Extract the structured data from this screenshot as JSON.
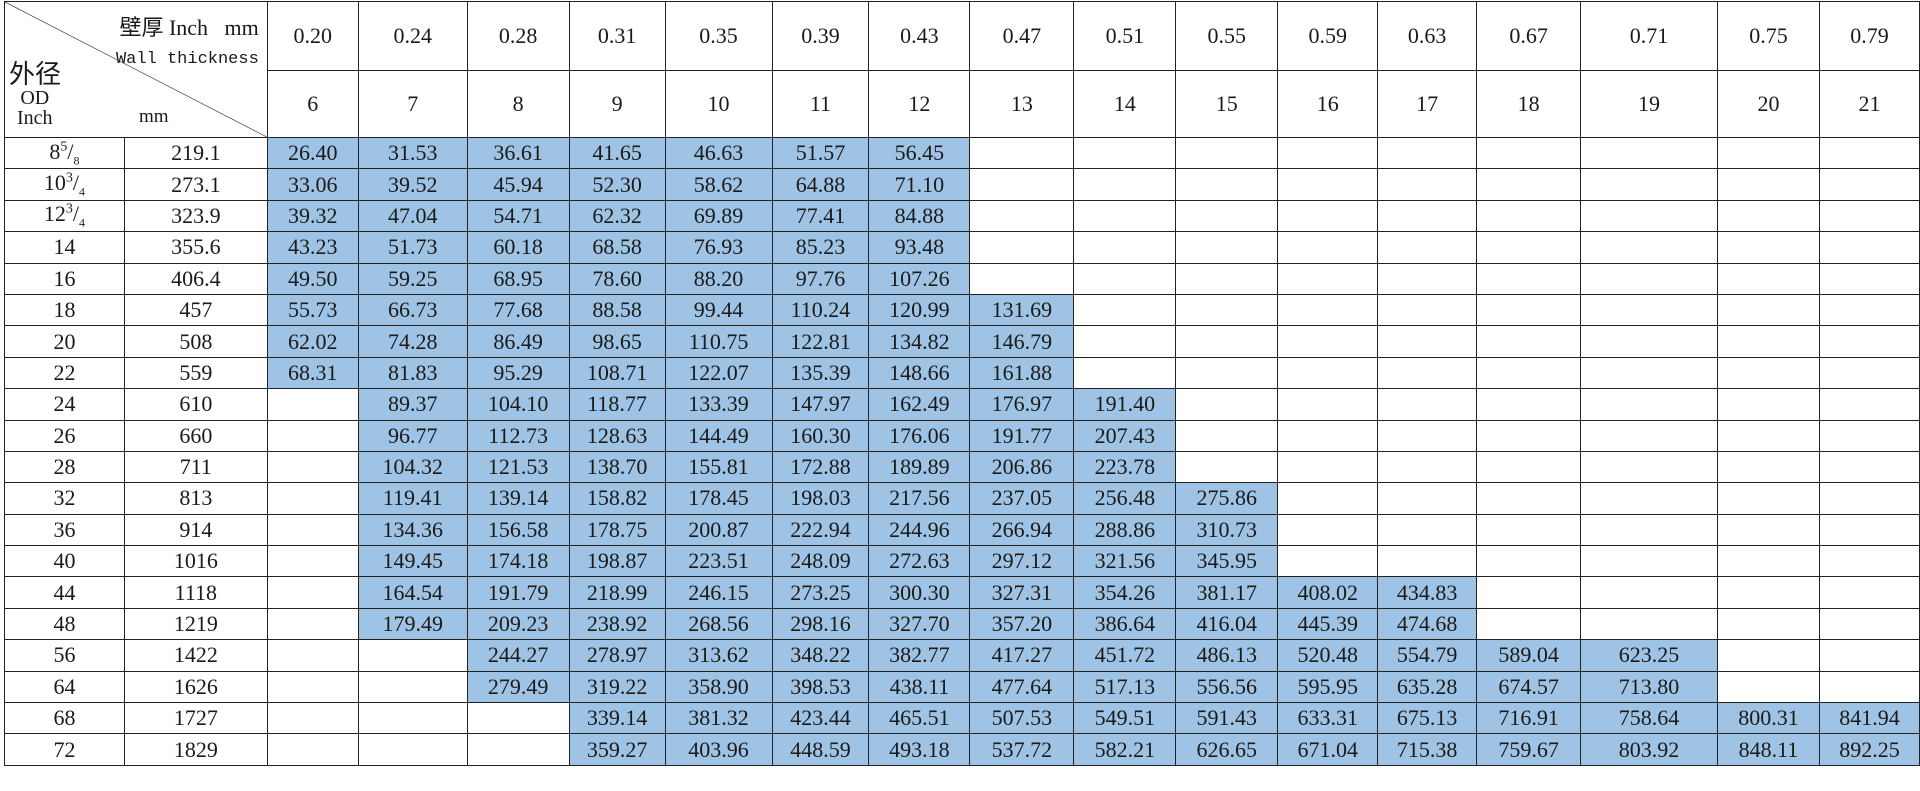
{
  "corner": {
    "wall_label": "壁厚 Inch   mm",
    "wall_label_en": "Wall thickness",
    "od_label": "外径",
    "od_label_en": "OD",
    "od_inch": "Inch",
    "od_mm": "mm"
  },
  "wall_inch": [
    "0.20",
    "0.24",
    "0.28",
    "0.31",
    "0.35",
    "0.39",
    "0.43",
    "0.47",
    "0.51",
    "0.55",
    "0.59",
    "0.63",
    "0.67",
    "0.71",
    "0.75",
    "0.79"
  ],
  "wall_mm": [
    "6",
    "7",
    "8",
    "9",
    "10",
    "11",
    "12",
    "13",
    "14",
    "15",
    "16",
    "17",
    "18",
    "19",
    "20",
    "21"
  ],
  "fill_color": "#9fc3e4",
  "rows": [
    {
      "od_inch": {
        "whole": "8",
        "num": "5",
        "den": "8"
      },
      "od_mm": "219.1",
      "values": [
        "26.40",
        "31.53",
        "36.61",
        "41.65",
        "46.63",
        "51.57",
        "56.45",
        "",
        "",
        "",
        "",
        "",
        "",
        "",
        "",
        ""
      ]
    },
    {
      "od_inch": {
        "whole": "10",
        "num": "3",
        "den": "4"
      },
      "od_mm": "273.1",
      "values": [
        "33.06",
        "39.52",
        "45.94",
        "52.30",
        "58.62",
        "64.88",
        "71.10",
        "",
        "",
        "",
        "",
        "",
        "",
        "",
        "",
        ""
      ]
    },
    {
      "od_inch": {
        "whole": "12",
        "num": "3",
        "den": "4"
      },
      "od_mm": "323.9",
      "values": [
        "39.32",
        "47.04",
        "54.71",
        "62.32",
        "69.89",
        "77.41",
        "84.88",
        "",
        "",
        "",
        "",
        "",
        "",
        "",
        "",
        ""
      ]
    },
    {
      "od_inch": {
        "whole": "14"
      },
      "od_mm": "355.6",
      "values": [
        "43.23",
        "51.73",
        "60.18",
        "68.58",
        "76.93",
        "85.23",
        "93.48",
        "",
        "",
        "",
        "",
        "",
        "",
        "",
        "",
        ""
      ]
    },
    {
      "od_inch": {
        "whole": "16"
      },
      "od_mm": "406.4",
      "values": [
        "49.50",
        "59.25",
        "68.95",
        "78.60",
        "88.20",
        "97.76",
        "107.26",
        "",
        "",
        "",
        "",
        "",
        "",
        "",
        "",
        ""
      ]
    },
    {
      "od_inch": {
        "whole": "18"
      },
      "od_mm": "457",
      "values": [
        "55.73",
        "66.73",
        "77.68",
        "88.58",
        "99.44",
        "110.24",
        "120.99",
        "131.69",
        "",
        "",
        "",
        "",
        "",
        "",
        "",
        ""
      ]
    },
    {
      "od_inch": {
        "whole": "20"
      },
      "od_mm": "508",
      "values": [
        "62.02",
        "74.28",
        "86.49",
        "98.65",
        "110.75",
        "122.81",
        "134.82",
        "146.79",
        "",
        "",
        "",
        "",
        "",
        "",
        "",
        ""
      ]
    },
    {
      "od_inch": {
        "whole": "22"
      },
      "od_mm": "559",
      "values": [
        "68.31",
        "81.83",
        "95.29",
        "108.71",
        "122.07",
        "135.39",
        "148.66",
        "161.88",
        "",
        "",
        "",
        "",
        "",
        "",
        "",
        ""
      ]
    },
    {
      "od_inch": {
        "whole": "24"
      },
      "od_mm": "610",
      "values": [
        "",
        "89.37",
        "104.10",
        "118.77",
        "133.39",
        "147.97",
        "162.49",
        "176.97",
        "191.40",
        "",
        "",
        "",
        "",
        "",
        "",
        ""
      ]
    },
    {
      "od_inch": {
        "whole": "26"
      },
      "od_mm": "660",
      "values": [
        "",
        "96.77",
        "112.73",
        "128.63",
        "144.49",
        "160.30",
        "176.06",
        "191.77",
        "207.43",
        "",
        "",
        "",
        "",
        "",
        "",
        ""
      ]
    },
    {
      "od_inch": {
        "whole": "28"
      },
      "od_mm": "711",
      "values": [
        "",
        "104.32",
        "121.53",
        "138.70",
        "155.81",
        "172.88",
        "189.89",
        "206.86",
        "223.78",
        "",
        "",
        "",
        "",
        "",
        "",
        ""
      ]
    },
    {
      "od_inch": {
        "whole": "32"
      },
      "od_mm": "813",
      "values": [
        "",
        "119.41",
        "139.14",
        "158.82",
        "178.45",
        "198.03",
        "217.56",
        "237.05",
        "256.48",
        "275.86",
        "",
        "",
        "",
        "",
        "",
        ""
      ]
    },
    {
      "od_inch": {
        "whole": "36"
      },
      "od_mm": "914",
      "values": [
        "",
        "134.36",
        "156.58",
        "178.75",
        "200.87",
        "222.94",
        "244.96",
        "266.94",
        "288.86",
        "310.73",
        "",
        "",
        "",
        "",
        "",
        ""
      ]
    },
    {
      "od_inch": {
        "whole": "40"
      },
      "od_mm": "1016",
      "values": [
        "",
        "149.45",
        "174.18",
        "198.87",
        "223.51",
        "248.09",
        "272.63",
        "297.12",
        "321.56",
        "345.95",
        "",
        "",
        "",
        "",
        "",
        ""
      ]
    },
    {
      "od_inch": {
        "whole": "44"
      },
      "od_mm": "1118",
      "values": [
        "",
        "164.54",
        "191.79",
        "218.99",
        "246.15",
        "273.25",
        "300.30",
        "327.31",
        "354.26",
        "381.17",
        "408.02",
        "434.83",
        "",
        "",
        "",
        ""
      ]
    },
    {
      "od_inch": {
        "whole": "48"
      },
      "od_mm": "1219",
      "values": [
        "",
        "179.49",
        "209.23",
        "238.92",
        "268.56",
        "298.16",
        "327.70",
        "357.20",
        "386.64",
        "416.04",
        "445.39",
        "474.68",
        "",
        "",
        "",
        ""
      ]
    },
    {
      "od_inch": {
        "whole": "56"
      },
      "od_mm": "1422",
      "values": [
        "",
        "",
        "244.27",
        "278.97",
        "313.62",
        "348.22",
        "382.77",
        "417.27",
        "451.72",
        "486.13",
        "520.48",
        "554.79",
        "589.04",
        "623.25",
        "",
        ""
      ]
    },
    {
      "od_inch": {
        "whole": "64"
      },
      "od_mm": "1626",
      "values": [
        "",
        "",
        "279.49",
        "319.22",
        "358.90",
        "398.53",
        "438.11",
        "477.64",
        "517.13",
        "556.56",
        "595.95",
        "635.28",
        "674.57",
        "713.80",
        "",
        ""
      ]
    },
    {
      "od_inch": {
        "whole": "68"
      },
      "od_mm": "1727",
      "values": [
        "",
        "",
        "",
        "339.14",
        "381.32",
        "423.44",
        "465.51",
        "507.53",
        "549.51",
        "591.43",
        "633.31",
        "675.13",
        "716.91",
        "758.64",
        "800.31",
        "841.94"
      ]
    },
    {
      "od_inch": {
        "whole": "72"
      },
      "od_mm": "1829",
      "values": [
        "",
        "",
        "",
        "359.27",
        "403.96",
        "448.59",
        "493.18",
        "537.72",
        "582.21",
        "626.65",
        "671.04",
        "715.38",
        "759.67",
        "803.92",
        "848.11",
        "892.25"
      ]
    }
  ]
}
